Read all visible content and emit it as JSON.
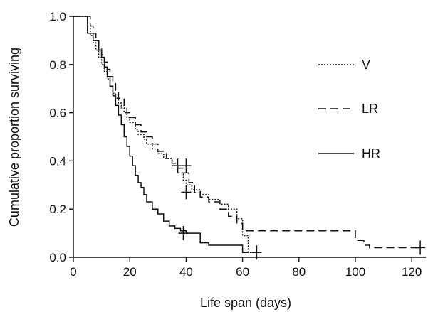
{
  "chart_data": {
    "type": "line",
    "step": true,
    "xlabel": "Life span (days)",
    "ylabel": "Cumulative proportion surviving",
    "xlim": [
      0,
      125
    ],
    "ylim": [
      0,
      1.0
    ],
    "xticks": [
      0,
      20,
      40,
      60,
      80,
      100,
      120
    ],
    "yticks": [
      0.0,
      0.2,
      0.4,
      0.6,
      0.8,
      1.0
    ],
    "xtick_labels": [
      "0",
      "20",
      "40",
      "60",
      "80",
      "100",
      "120"
    ],
    "ytick_labels": [
      "0.0",
      "0.2",
      "0.4",
      "0.6",
      "0.8",
      "1.0"
    ],
    "legend_position": "right",
    "line_color": "#111111",
    "series": [
      {
        "name": "V",
        "style": "dotted",
        "x": [
          0,
          5,
          6,
          7,
          8,
          9,
          10,
          11,
          12,
          13,
          14,
          15,
          16,
          17,
          18,
          19,
          20,
          22,
          23,
          25,
          26,
          28,
          30,
          32,
          35,
          37,
          39,
          40,
          42,
          45,
          48,
          52,
          55,
          58,
          60,
          62,
          65
        ],
        "y": [
          1.0,
          0.95,
          0.92,
          0.89,
          0.86,
          0.83,
          0.8,
          0.77,
          0.74,
          0.71,
          0.68,
          0.66,
          0.64,
          0.62,
          0.6,
          0.58,
          0.56,
          0.53,
          0.51,
          0.49,
          0.47,
          0.45,
          0.43,
          0.41,
          0.38,
          0.35,
          0.32,
          0.3,
          0.28,
          0.26,
          0.24,
          0.22,
          0.2,
          0.16,
          0.09,
          0.02,
          0.02
        ],
        "censored": [
          {
            "x": 40,
            "y": 0.27
          },
          {
            "x": 65,
            "y": 0.02
          }
        ]
      },
      {
        "name": "LR",
        "style": "dashed",
        "x": [
          0,
          6,
          7,
          8,
          9,
          10,
          11,
          12,
          13,
          14,
          15,
          16,
          18,
          19,
          20,
          22,
          24,
          26,
          28,
          30,
          33,
          35,
          37,
          39,
          41,
          43,
          45,
          48,
          52,
          55,
          58,
          60,
          61,
          62,
          100,
          103,
          105,
          123
        ],
        "y": [
          1.0,
          0.96,
          0.93,
          0.9,
          0.87,
          0.84,
          0.81,
          0.78,
          0.75,
          0.72,
          0.69,
          0.66,
          0.63,
          0.6,
          0.58,
          0.55,
          0.52,
          0.5,
          0.47,
          0.44,
          0.41,
          0.39,
          0.37,
          0.35,
          0.31,
          0.27,
          0.25,
          0.23,
          0.2,
          0.17,
          0.14,
          0.11,
          0.11,
          0.11,
          0.07,
          0.05,
          0.04,
          0.04
        ],
        "censored": [
          {
            "x": 37,
            "y": 0.38
          },
          {
            "x": 40,
            "y": 0.38
          },
          {
            "x": 123,
            "y": 0.04
          }
        ]
      },
      {
        "name": "HR",
        "style": "solid",
        "x": [
          0,
          5,
          7,
          9,
          10,
          11,
          12,
          13,
          14,
          15,
          16,
          17,
          18,
          19,
          20,
          21,
          22,
          23,
          24,
          25,
          26,
          28,
          30,
          32,
          34,
          36,
          38,
          40,
          42,
          45,
          48,
          55,
          60,
          62
        ],
        "y": [
          1.0,
          0.93,
          0.9,
          0.86,
          0.83,
          0.79,
          0.75,
          0.71,
          0.67,
          0.63,
          0.59,
          0.55,
          0.5,
          0.46,
          0.42,
          0.38,
          0.34,
          0.31,
          0.29,
          0.26,
          0.23,
          0.2,
          0.18,
          0.15,
          0.13,
          0.12,
          0.11,
          0.1,
          0.1,
          0.06,
          0.05,
          0.05,
          0.02,
          0.02
        ],
        "censored": [
          {
            "x": 39,
            "y": 0.1
          }
        ]
      }
    ]
  }
}
